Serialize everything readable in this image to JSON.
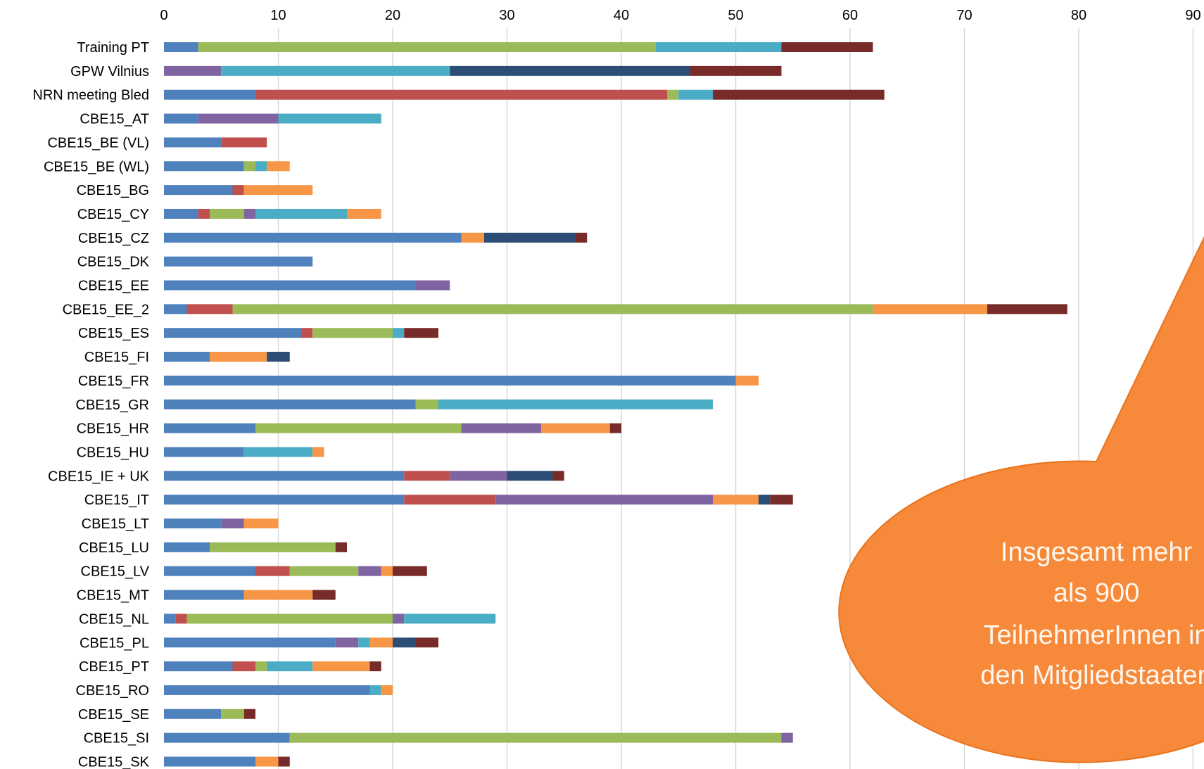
{
  "chart_data": {
    "type": "bar",
    "orientation": "horizontal",
    "stacked": true,
    "title": "",
    "xlabel": "",
    "ylabel": "",
    "xlim": [
      0,
      90
    ],
    "x_ticks": [
      0,
      10,
      20,
      30,
      40,
      50,
      60,
      70,
      80,
      90
    ],
    "grid": true,
    "legend": "none",
    "colors": [
      "#4f81bd",
      "#c0504d",
      "#9bbb59",
      "#8064a2",
      "#4bacc6",
      "#f79646",
      "#2c4d75",
      "#772c2a"
    ],
    "categories": [
      "Training PT",
      "GPW Vilnius",
      "NRN meeting Bled",
      "CBE15_AT",
      "CBE15_BE (VL)",
      "CBE15_BE (WL)",
      "CBE15_BG",
      "CBE15_CY",
      "CBE15_CZ",
      "CBE15_DK",
      "CBE15_EE",
      "CBE15_EE_2",
      "CBE15_ES",
      "CBE15_FI",
      "CBE15_FR",
      "CBE15_GR",
      "CBE15_HR",
      "CBE15_HU",
      "CBE15_IE + UK",
      "CBE15_IT",
      "CBE15_LT",
      "CBE15_LU",
      "CBE15_LV",
      "CBE15_MT",
      "CBE15_NL",
      "CBE15_PL",
      "CBE15_PT",
      "CBE15_RO",
      "CBE15_SE",
      "CBE15_SI",
      "CBE15_SK"
    ],
    "series": [
      {
        "values": [
          3,
          0,
          8,
          3,
          5,
          7,
          6,
          3,
          26,
          13,
          22,
          2,
          12,
          4,
          50,
          22,
          8,
          7,
          21,
          21,
          5,
          4,
          8,
          7,
          1,
          15,
          6,
          18,
          5,
          11,
          8
        ]
      },
      {
        "values": [
          0,
          0,
          36,
          0,
          4,
          0,
          1,
          1,
          0,
          0,
          0,
          4,
          1,
          0,
          0,
          0,
          0,
          0,
          4,
          8,
          0,
          0,
          3,
          0,
          1,
          0,
          2,
          0,
          0,
          0,
          0
        ]
      },
      {
        "values": [
          40,
          0,
          1,
          0,
          0,
          1,
          0,
          3,
          0,
          0,
          0,
          56,
          7,
          0,
          0,
          2,
          18,
          0,
          0,
          0,
          0,
          11,
          6,
          0,
          18,
          0,
          1,
          0,
          2,
          43,
          0
        ]
      },
      {
        "values": [
          0,
          5,
          0,
          7,
          0,
          0,
          0,
          1,
          0,
          0,
          3,
          0,
          0,
          0,
          0,
          0,
          7,
          0,
          5,
          19,
          2,
          0,
          2,
          0,
          1,
          2,
          0,
          0,
          0,
          1,
          0
        ]
      },
      {
        "values": [
          11,
          20,
          3,
          9,
          0,
          1,
          0,
          8,
          0,
          0,
          0,
          0,
          1,
          0,
          0,
          24,
          0,
          6,
          0,
          0,
          0,
          0,
          0,
          0,
          8,
          1,
          4,
          1,
          0,
          0,
          0
        ]
      },
      {
        "values": [
          0,
          0,
          0,
          0,
          0,
          2,
          6,
          3,
          2,
          0,
          0,
          10,
          0,
          5,
          2,
          0,
          6,
          1,
          0,
          4,
          3,
          0,
          1,
          6,
          0,
          2,
          5,
          1,
          0,
          0,
          2
        ]
      },
      {
        "values": [
          0,
          21,
          0,
          0,
          0,
          0,
          0,
          0,
          8,
          0,
          0,
          0,
          0,
          2,
          0,
          0,
          0,
          0,
          4,
          1,
          0,
          0,
          0,
          0,
          0,
          2,
          0,
          0,
          0,
          0,
          0
        ]
      },
      {
        "values": [
          8,
          8,
          15,
          0,
          0,
          0,
          0,
          0,
          1,
          0,
          0,
          7,
          3,
          0,
          0,
          0,
          1,
          0,
          1,
          2,
          0,
          1,
          3,
          2,
          0,
          2,
          1,
          0,
          1,
          0,
          1
        ]
      }
    ],
    "annotation": {
      "lines": [
        "Insgesamt mehr",
        "als 900",
        "TeilnehmerInnen in",
        "den Mitgliedstaaten"
      ],
      "fill": "#f7893a",
      "stroke": "#e9731e",
      "text_color": "#fff6ee"
    }
  }
}
